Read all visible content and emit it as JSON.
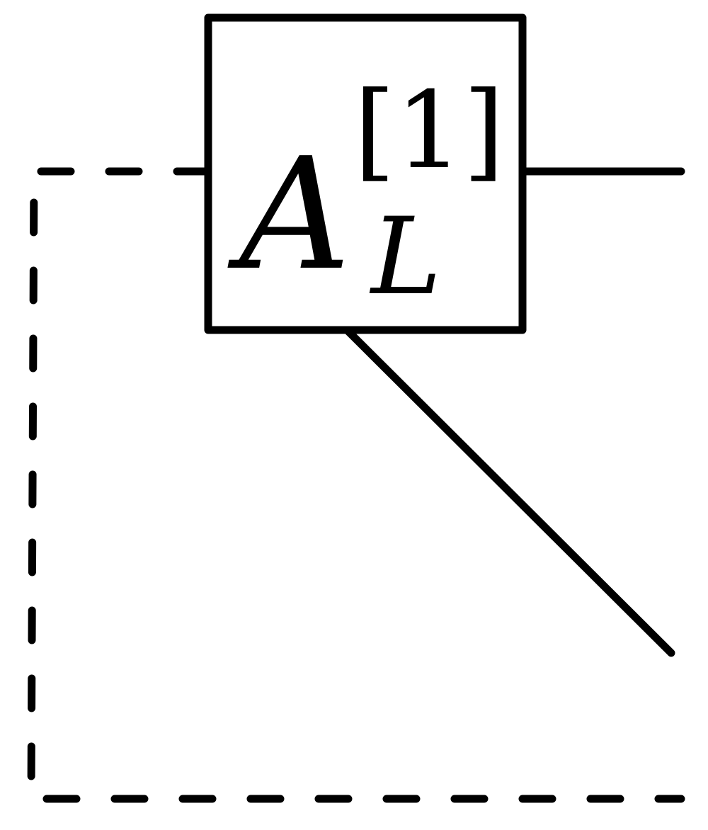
{
  "diagram": {
    "tensor": {
      "symbol": "A",
      "superscript": "[1]",
      "subscript": "L"
    },
    "colors": {
      "stroke": "#000000",
      "background": "#ffffff"
    }
  }
}
